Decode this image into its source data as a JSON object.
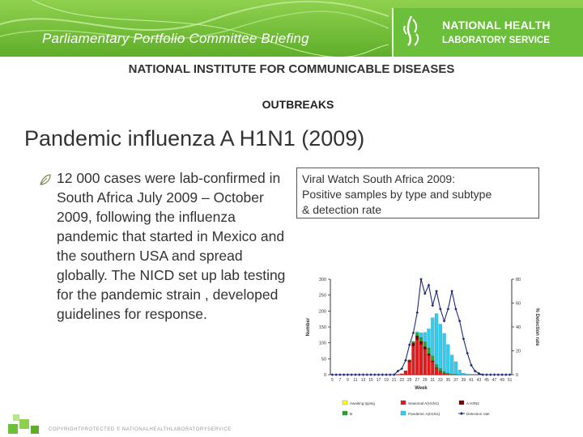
{
  "header": {
    "title": "Parliamentary Portfolio Committee Briefing",
    "logo_line1": "NATIONAL HEALTH",
    "logo_line2": "LABORATORY SERVICE",
    "logo_icon": "nhls-logo-icon"
  },
  "institute": "NATIONAL INSTITUTE FOR COMMUNICABLE DISEASES",
  "section": "OUTBREAKS",
  "slide_title": "Pandemic influenza A H1N1 (2009)",
  "bullet": {
    "icon": "leaf-bullet-icon",
    "text": "12 000 cases were lab-confirmed in South Africa July 2009 – October 2009, following the influenza pandemic that started in Mexico and the southern USA and spread globally. The NICD set up lab testing for the pandemic strain , developed guidelines for response."
  },
  "chart_caption": {
    "line1": "Viral Watch South Africa 2009:",
    "line2": "Positive samples by type and subtype",
    "line3": " & detection rate"
  },
  "footer": {
    "text": "COPYRIGHTPROTECTED © NATIONALHEALTHLABORATORYSERVICE"
  },
  "chart_data": {
    "type": "bar",
    "stacked": true,
    "title": "",
    "xlabel": "Week",
    "ylabel": "Number",
    "ylabel_right": "% Detection rate",
    "x": [
      5,
      6,
      7,
      8,
      9,
      10,
      11,
      12,
      13,
      14,
      15,
      16,
      17,
      18,
      19,
      20,
      21,
      22,
      23,
      24,
      25,
      26,
      27,
      28,
      29,
      30,
      31,
      32,
      33,
      34,
      35,
      36,
      37,
      38,
      39,
      40,
      41,
      42,
      43,
      44,
      45,
      46,
      47,
      48,
      49,
      50,
      51
    ],
    "x_tick_labels": [
      "5",
      "7",
      "9",
      "11",
      "13",
      "15",
      "17",
      "19",
      "21",
      "23",
      "25",
      "27",
      "29",
      "31",
      "33",
      "35",
      "37",
      "39",
      "41",
      "43",
      "45",
      "47",
      "49",
      "51"
    ],
    "ylim": [
      0,
      300
    ],
    "y_ticks": [
      0,
      50,
      100,
      150,
      200,
      250,
      300
    ],
    "ylim_right": [
      0,
      80
    ],
    "y_ticks_right": [
      0,
      20,
      40,
      60,
      80
    ],
    "series": [
      {
        "name": "Awaiting typing",
        "color": "#ffff00",
        "values": [
          0,
          0,
          0,
          0,
          0,
          0,
          0,
          0,
          0,
          0,
          0,
          0,
          0,
          0,
          0,
          0,
          0,
          0,
          0,
          0,
          0,
          0,
          0,
          0,
          0,
          0,
          0,
          0,
          0,
          0,
          0,
          0,
          0,
          0,
          0,
          0,
          0,
          0,
          0,
          0,
          0,
          0,
          0,
          0,
          0,
          0,
          0
        ]
      },
      {
        "name": "Seasonal A(H1N1)",
        "color": "#e31a1c",
        "values": [
          0,
          0,
          0,
          0,
          0,
          0,
          0,
          0,
          0,
          0,
          0,
          0,
          0,
          0,
          0,
          0,
          0,
          1,
          3,
          10,
          40,
          90,
          110,
          95,
          80,
          60,
          40,
          20,
          10,
          5,
          2,
          0,
          0,
          0,
          0,
          0,
          0,
          0,
          0,
          0,
          0,
          0,
          0,
          0,
          0,
          0,
          0
        ]
      },
      {
        "name": "A H3N2",
        "color": "#7a0000",
        "values": [
          0,
          0,
          0,
          0,
          0,
          0,
          0,
          0,
          0,
          0,
          0,
          0,
          0,
          0,
          0,
          0,
          0,
          0,
          0,
          2,
          5,
          10,
          12,
          10,
          8,
          6,
          4,
          2,
          1,
          0,
          0,
          0,
          0,
          0,
          0,
          0,
          0,
          0,
          0,
          0,
          0,
          0,
          0,
          0,
          0,
          0,
          0
        ]
      },
      {
        "name": "B",
        "color": "#2ca02c",
        "values": [
          0,
          0,
          0,
          0,
          0,
          0,
          0,
          0,
          0,
          0,
          0,
          0,
          0,
          0,
          0,
          0,
          0,
          0,
          0,
          0,
          2,
          5,
          8,
          12,
          15,
          18,
          15,
          10,
          8,
          5,
          3,
          2,
          1,
          0,
          0,
          0,
          0,
          0,
          0,
          0,
          0,
          0,
          0,
          0,
          0,
          0,
          0
        ]
      },
      {
        "name": "Pandemic A(H1N1)",
        "color": "#33ccee",
        "values": [
          0,
          0,
          0,
          0,
          0,
          0,
          0,
          0,
          0,
          0,
          0,
          0,
          0,
          0,
          0,
          0,
          0,
          0,
          0,
          0,
          0,
          0,
          5,
          15,
          30,
          60,
          120,
          160,
          140,
          120,
          90,
          60,
          40,
          15,
          5,
          2,
          0,
          0,
          0,
          0,
          0,
          0,
          0,
          0,
          0,
          0,
          0
        ]
      }
    ],
    "line_series": {
      "name": "Detection rate",
      "color": "#1f2a7a",
      "values": [
        0,
        0,
        0,
        0,
        0,
        0,
        0,
        0,
        0,
        0,
        0,
        0,
        0,
        0,
        0,
        0,
        0,
        3,
        5,
        12,
        25,
        35,
        52,
        80,
        68,
        75,
        58,
        70,
        55,
        45,
        55,
        70,
        55,
        45,
        30,
        18,
        8,
        3,
        1,
        0,
        0,
        0,
        0,
        0,
        0,
        0,
        0
      ]
    },
    "legend": [
      "Awaiting typing",
      "Seasonal A(H1N1)",
      "A H3N2",
      "B",
      "Pandemic A(H1N1)",
      "Detection rate"
    ],
    "legend_position": "bottom",
    "grid": false
  }
}
